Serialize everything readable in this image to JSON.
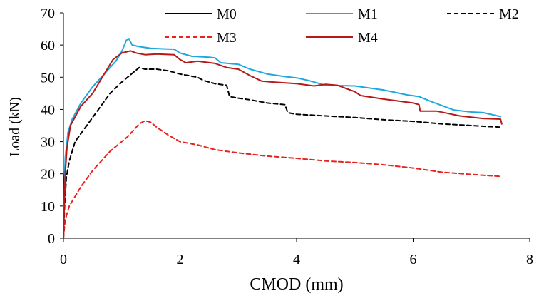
{
  "chart_data": {
    "type": "line",
    "title": "",
    "xlabel": "CMOD (mm)",
    "ylabel": "Load (kN)",
    "xlim": [
      0,
      8
    ],
    "ylim": [
      0,
      70
    ],
    "x_ticks": [
      "0",
      "2",
      "4",
      "6",
      "8"
    ],
    "y_ticks": [
      "0",
      "10",
      "20",
      "30",
      "40",
      "50",
      "60",
      "70"
    ],
    "grid": false,
    "legend_position": "top",
    "series": [
      {
        "name": "M0",
        "color": "#000000",
        "dash": "solid",
        "points": [
          [
            0,
            0
          ],
          [
            0.01,
            10
          ],
          [
            0.02,
            19
          ],
          [
            0.03,
            23
          ]
        ]
      },
      {
        "name": "M1",
        "color": "#1fa8e0",
        "dash": "solid",
        "points": [
          [
            0,
            0
          ],
          [
            0.03,
            25
          ],
          [
            0.08,
            33
          ],
          [
            0.15,
            37
          ],
          [
            0.3,
            42
          ],
          [
            0.5,
            47
          ],
          [
            0.7,
            51
          ],
          [
            0.9,
            55
          ],
          [
            1.0,
            58
          ],
          [
            1.08,
            61.5
          ],
          [
            1.12,
            62
          ],
          [
            1.18,
            60
          ],
          [
            1.3,
            59.5
          ],
          [
            1.5,
            59
          ],
          [
            1.75,
            58.8
          ],
          [
            1.9,
            58.7
          ],
          [
            2.0,
            57.5
          ],
          [
            2.2,
            56.5
          ],
          [
            2.5,
            56.2
          ],
          [
            2.6,
            56
          ],
          [
            2.7,
            54.5
          ],
          [
            3.0,
            54
          ],
          [
            3.2,
            52.5
          ],
          [
            3.5,
            51
          ],
          [
            3.8,
            50.2
          ],
          [
            4.0,
            49.8
          ],
          [
            4.2,
            49
          ],
          [
            4.5,
            47.5
          ],
          [
            5.0,
            47.3
          ],
          [
            5.5,
            46
          ],
          [
            5.9,
            44.5
          ],
          [
            6.1,
            44
          ],
          [
            6.3,
            42.5
          ],
          [
            6.7,
            39.8
          ],
          [
            7.0,
            39.2
          ],
          [
            7.2,
            39
          ],
          [
            7.5,
            37.8
          ]
        ]
      },
      {
        "name": "M2",
        "color": "#000000",
        "dash": "dashed",
        "points": [
          [
            0,
            0
          ],
          [
            0.02,
            10
          ],
          [
            0.05,
            19
          ],
          [
            0.1,
            24
          ],
          [
            0.2,
            30
          ],
          [
            0.4,
            35
          ],
          [
            0.6,
            40
          ],
          [
            0.8,
            45
          ],
          [
            1.0,
            48.5
          ],
          [
            1.2,
            51.5
          ],
          [
            1.3,
            53
          ],
          [
            1.4,
            52.5
          ],
          [
            1.6,
            52.5
          ],
          [
            1.8,
            52
          ],
          [
            2.0,
            51
          ],
          [
            2.3,
            50
          ],
          [
            2.4,
            49
          ],
          [
            2.6,
            48
          ],
          [
            2.8,
            47.5
          ],
          [
            2.85,
            44
          ],
          [
            3.0,
            43.5
          ],
          [
            3.2,
            43
          ],
          [
            3.5,
            42
          ],
          [
            3.8,
            41.5
          ],
          [
            3.85,
            39
          ],
          [
            4.0,
            38.5
          ],
          [
            4.5,
            38
          ],
          [
            5.0,
            37.5
          ],
          [
            5.5,
            36.8
          ],
          [
            6.0,
            36.3
          ],
          [
            6.5,
            35.5
          ],
          [
            7.0,
            35
          ],
          [
            7.5,
            34.5
          ]
        ]
      },
      {
        "name": "M3",
        "color": "#e8231f",
        "dash": "dashed",
        "points": [
          [
            0,
            0
          ],
          [
            0.02,
            4
          ],
          [
            0.05,
            7
          ],
          [
            0.1,
            10
          ],
          [
            0.3,
            16
          ],
          [
            0.5,
            21
          ],
          [
            0.8,
            27
          ],
          [
            1.1,
            31.5
          ],
          [
            1.3,
            35.5
          ],
          [
            1.4,
            36.5
          ],
          [
            1.5,
            36
          ],
          [
            1.6,
            34.5
          ],
          [
            1.8,
            32
          ],
          [
            2.0,
            30
          ],
          [
            2.3,
            29
          ],
          [
            2.6,
            27.5
          ],
          [
            3.0,
            26.5
          ],
          [
            3.5,
            25.5
          ],
          [
            4.0,
            24.8
          ],
          [
            4.5,
            24
          ],
          [
            5.0,
            23.5
          ],
          [
            5.5,
            22.8
          ],
          [
            6.0,
            21.8
          ],
          [
            6.5,
            20.5
          ],
          [
            7.0,
            19.8
          ],
          [
            7.5,
            19.2
          ]
        ]
      },
      {
        "name": "M4",
        "color": "#b81818",
        "dash": "solid",
        "points": [
          [
            0,
            0
          ],
          [
            0.03,
            20
          ],
          [
            0.06,
            28
          ],
          [
            0.12,
            35
          ],
          [
            0.3,
            41
          ],
          [
            0.5,
            45
          ],
          [
            0.7,
            51
          ],
          [
            0.85,
            55.5
          ],
          [
            1.0,
            57.5
          ],
          [
            1.15,
            58.2
          ],
          [
            1.25,
            57.5
          ],
          [
            1.4,
            57
          ],
          [
            1.6,
            57.2
          ],
          [
            1.9,
            57
          ],
          [
            2.0,
            55.5
          ],
          [
            2.1,
            54.5
          ],
          [
            2.3,
            55
          ],
          [
            2.6,
            54.3
          ],
          [
            2.8,
            53
          ],
          [
            3.0,
            52.5
          ],
          [
            3.2,
            50.5
          ],
          [
            3.4,
            48.8
          ],
          [
            3.6,
            48.5
          ],
          [
            4.0,
            48
          ],
          [
            4.3,
            47.3
          ],
          [
            4.5,
            47.8
          ],
          [
            4.7,
            47.5
          ],
          [
            5.0,
            45.5
          ],
          [
            5.1,
            44.3
          ],
          [
            5.5,
            43.2
          ],
          [
            6.0,
            42
          ],
          [
            6.1,
            41.5
          ],
          [
            6.12,
            39.5
          ],
          [
            6.4,
            39.5
          ],
          [
            6.8,
            38
          ],
          [
            7.2,
            37.2
          ],
          [
            7.5,
            37
          ],
          [
            7.52,
            35.5
          ]
        ]
      }
    ]
  }
}
